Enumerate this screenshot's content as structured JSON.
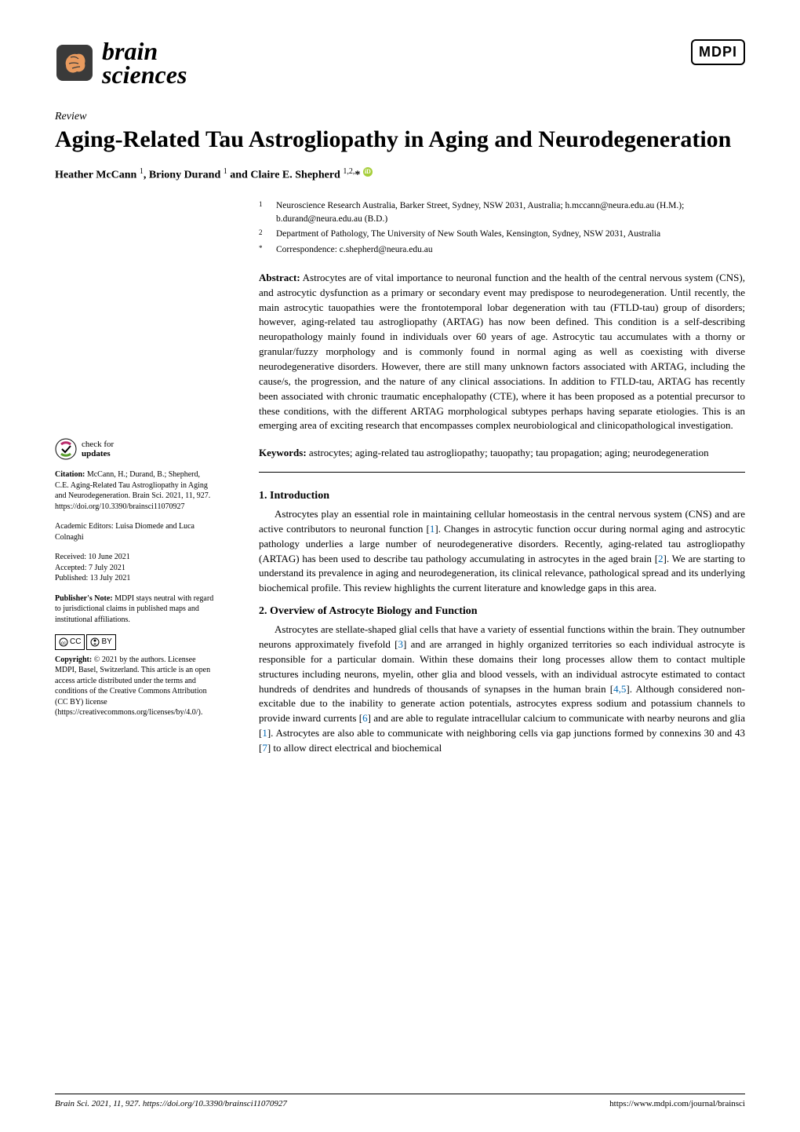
{
  "journal": {
    "name_line1": "brain",
    "name_line2": "sciences",
    "publisher_logo": "MDPI"
  },
  "article": {
    "type": "Review",
    "title": "Aging-Related Tau Astrogliopathy in Aging and Neurodegeneration",
    "authors_html": "Heather McCann ¹, Briony Durand ¹ and Claire E. Shepherd ¹,²,*",
    "author1": "Heather McCann",
    "author1_sup": "1",
    "author2": "Briony Durand",
    "author2_sup": "1",
    "author3": "Claire E. Shepherd",
    "author3_sup": "1,2,",
    "affiliations": [
      {
        "num": "1",
        "text": "Neuroscience Research Australia, Barker Street, Sydney, NSW 2031, Australia; h.mccann@neura.edu.au (H.M.); b.durand@neura.edu.au (B.D.)"
      },
      {
        "num": "2",
        "text": "Department of Pathology, The University of New South Wales, Kensington, Sydney, NSW 2031, Australia"
      },
      {
        "num": "*",
        "text": "Correspondence: c.shepherd@neura.edu.au"
      }
    ],
    "abstract_label": "Abstract:",
    "abstract": "Astrocytes are of vital importance to neuronal function and the health of the central nervous system (CNS), and astrocytic dysfunction as a primary or secondary event may predispose to neurodegeneration. Until recently, the main astrocytic tauopathies were the frontotemporal lobar degeneration with tau (FTLD-tau) group of disorders; however, aging-related tau astrogliopathy (ARTAG) has now been defined. This condition is a self-describing neuropathology mainly found in individuals over 60 years of age. Astrocytic tau accumulates with a thorny or granular/fuzzy morphology and is commonly found in normal aging as well as coexisting with diverse neurodegenerative disorders. However, there are still many unknown factors associated with ARTAG, including the cause/s, the progression, and the nature of any clinical associations. In addition to FTLD-tau, ARTAG has recently been associated with chronic traumatic encephalopathy (CTE), where it has been proposed as a potential precursor to these conditions, with the different ARTAG morphological subtypes perhaps having separate etiologies. This is an emerging area of exciting research that encompasses complex neurobiological and clinicopathological investigation.",
    "keywords_label": "Keywords:",
    "keywords": "astrocytes; aging-related tau astrogliopathy; tauopathy; tau propagation; aging; neurodegeneration"
  },
  "sidebar": {
    "check_updates_line1": "check for",
    "check_updates_line2": "updates",
    "citation_label": "Citation:",
    "citation": "McCann, H.; Durand, B.; Shepherd, C.E. Aging-Related Tau Astrogliopathy in Aging and Neurodegeneration. Brain Sci. 2021, 11, 927. https://doi.org/10.3390/brainsci11070927",
    "editors_label": "Academic Editors:",
    "editors": "Luisa Diomede and Luca Colnaghi",
    "received": "Received: 10 June 2021",
    "accepted": "Accepted: 7 July 2021",
    "published": "Published: 13 July 2021",
    "publisher_note_label": "Publisher's Note:",
    "publisher_note": "MDPI stays neutral with regard to jurisdictional claims in published maps and institutional affiliations.",
    "cc_text": "CC",
    "by_text": "BY",
    "copyright_label": "Copyright:",
    "copyright": "© 2021 by the authors. Licensee MDPI, Basel, Switzerland. This article is an open access article distributed under the terms and conditions of the Creative Commons Attribution (CC BY) license (https://creativecommons.org/licenses/by/4.0/)."
  },
  "sections": {
    "s1_heading": "1. Introduction",
    "s1_body": "Astrocytes play an essential role in maintaining cellular homeostasis in the central nervous system (CNS) and are active contributors to neuronal function [1]. Changes in astrocytic function occur during normal aging and astrocytic pathology underlies a large number of neurodegenerative disorders. Recently, aging-related tau astrogliopathy (ARTAG) has been used to describe tau pathology accumulating in astrocytes in the aged brain [2]. We are starting to understand its prevalence in aging and neurodegeneration, its clinical relevance, pathological spread and its underlying biochemical profile. This review highlights the current literature and knowledge gaps in this area.",
    "s2_heading": "2. Overview of Astrocyte Biology and Function",
    "s2_body": "Astrocytes are stellate-shaped glial cells that have a variety of essential functions within the brain. They outnumber neurons approximately fivefold [3] and are arranged in highly organized territories so each individual astrocyte is responsible for a particular domain. Within these domains their long processes allow them to contact multiple structures including neurons, myelin, other glia and blood vessels, with an individual astrocyte estimated to contact hundreds of dendrites and hundreds of thousands of synapses in the human brain [4,5]. Although considered non-excitable due to the inability to generate action potentials, astrocytes express sodium and potassium channels to provide inward currents [6] and are able to regulate intracellular calcium to communicate with nearby neurons and glia [1]. Astrocytes are also able to communicate with neighboring cells via gap junctions formed by connexins 30 and 43 [7] to allow direct electrical and biochemical"
  },
  "footer": {
    "left": "Brain Sci. 2021, 11, 927. https://doi.org/10.3390/brainsci11070927",
    "right": "https://www.mdpi.com/journal/brainsci"
  },
  "colors": {
    "ref_color": "#0068b4",
    "orcid_bg": "#a6ce39",
    "text": "#000000",
    "bg": "#ffffff"
  }
}
